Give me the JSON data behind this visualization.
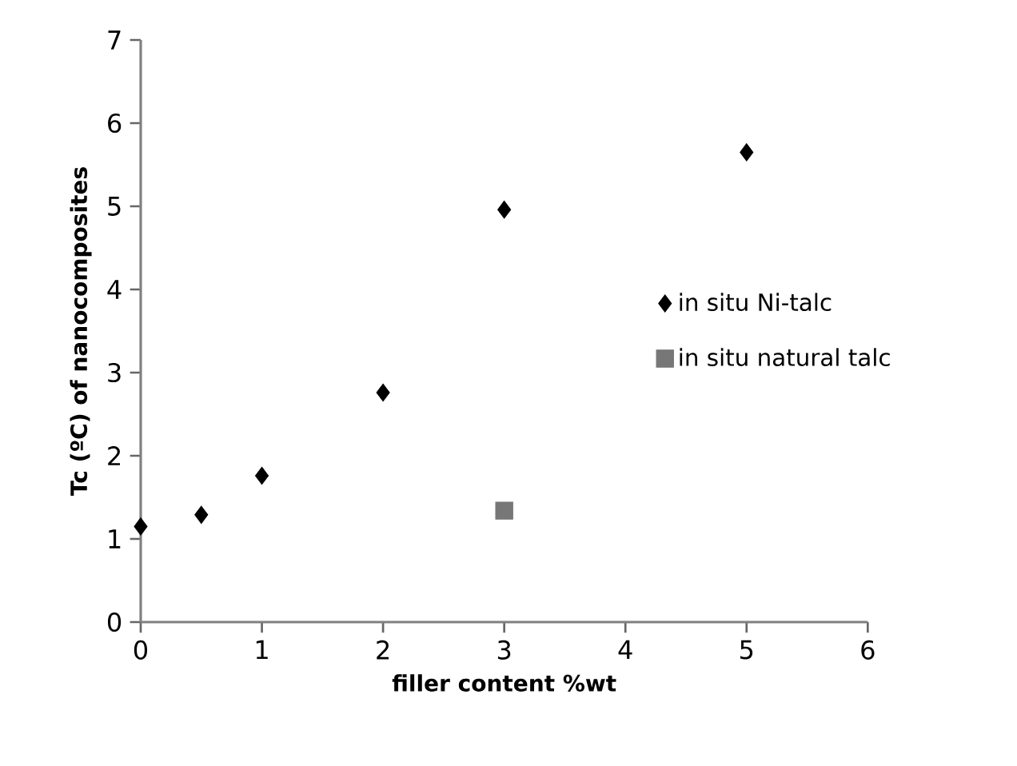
{
  "chart_data": {
    "type": "scatter",
    "xlabel": "filler content %wt",
    "ylabel": "Tc (ºC) of nanocomposites",
    "xlim": [
      0,
      6
    ],
    "ylim": [
      0,
      7
    ],
    "xticks": [
      0,
      1,
      2,
      3,
      4,
      5,
      6
    ],
    "yticks": [
      0,
      1,
      2,
      3,
      4,
      5,
      6,
      7
    ],
    "grid": false,
    "legend": "right",
    "series": [
      {
        "name": "in situ Ni-talc",
        "color": "#000000",
        "marker": "diamond",
        "x": [
          0,
          0.5,
          1,
          2,
          3,
          5
        ],
        "values": [
          1.15,
          1.29,
          1.76,
          2.76,
          4.96,
          5.65
        ]
      },
      {
        "name": "in situ natural talc",
        "color": "#777777",
        "marker": "square",
        "x": [
          3
        ],
        "values": [
          1.34
        ]
      }
    ]
  }
}
